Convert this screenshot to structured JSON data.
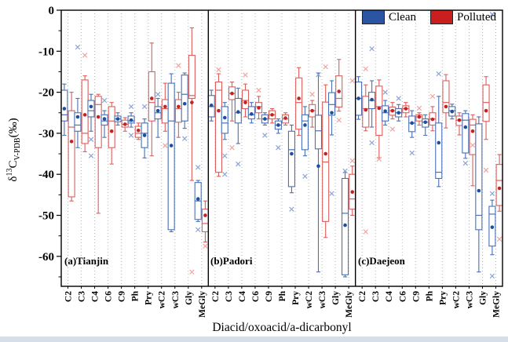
{
  "chart_data": {
    "type": "boxplot",
    "title": "",
    "xlabel": "Diacid/oxoacid/a-dicarbonyl",
    "ylabel_parts": {
      "delta": "δ",
      "sup": "13",
      "main": "C",
      "sub": "V-PDB",
      "unit": "(‰)"
    },
    "y_axis": {
      "ticks": [
        0,
        -10,
        -20,
        -30,
        -40,
        -50,
        -60
      ],
      "minor_ticks": [
        -5,
        -15,
        -25,
        -35,
        -45,
        -55,
        -65
      ],
      "min": -67.3,
      "max": 0,
      "grid": "vertical-dotted"
    },
    "categories": [
      "C2",
      "C3",
      "C4",
      "C6",
      "C9",
      "Ph",
      "Pry",
      "wC2",
      "wC3",
      "Gly",
      "MeGly"
    ],
    "legend": [
      {
        "label": "Clean",
        "color": "#2b55a2"
      },
      {
        "label": "Polluted",
        "color": "#cb1f1f"
      }
    ],
    "series_style": {
      "clean": {
        "stroke": "#4a70b5",
        "mean": "#1e4f9f",
        "outlier": "#8aa4d6"
      },
      "polluted": {
        "stroke": "#db5f5c",
        "mean": "#c42323",
        "outlier": "#efa4a0"
      }
    },
    "box_value_order": [
      "low",
      "q1",
      "median",
      "q3",
      "high",
      "mean"
    ],
    "panels": [
      {
        "label": "(a)Tianjin",
        "boxes": [
          {
            "cat": "C2",
            "clean": [
              -30.5,
              -27,
              -25.5,
              -19.5,
              -18,
              -24
            ],
            "clean_out": [],
            "poll": [
              -46.5,
              -45.5,
              -28.5,
              -24.5,
              -20,
              -32
            ],
            "poll_out": []
          },
          {
            "cat": "C3",
            "clean": [
              -33.5,
              -29.5,
              -28,
              -25,
              -21.5,
              -26
            ],
            "clean_out": [
              -9
            ],
            "poll": [
              -34.5,
              -32.5,
              -30,
              -17,
              -16,
              -25.5
            ],
            "poll_out": [
              -11
            ]
          },
          {
            "cat": "C4",
            "clean": [
              -29.5,
              -26,
              -24.5,
              -22,
              -20.5,
              -23.5
            ],
            "clean_out": [
              -31.5,
              -35.5
            ],
            "poll": [
              -49.5,
              -33.5,
              -23,
              -21,
              -20.5,
              -26
            ],
            "poll_out": []
          },
          {
            "cat": "C6",
            "clean": [
              -31,
              -28,
              -27,
              -25.5,
              -24.5,
              -26.5
            ],
            "clean_out": [
              -22
            ],
            "poll": [
              -37.5,
              -33.5,
              -27,
              -23.5,
              -22.5,
              -29.5
            ],
            "poll_out": []
          },
          {
            "cat": "C9",
            "clean": [
              -28,
              -27.2,
              -26.5,
              -25.8,
              -25,
              -26.5
            ],
            "clean_out": [],
            "poll": [
              -29.5,
              -28.5,
              -27.8,
              -26.8,
              -26.2,
              -27.8
            ],
            "poll_out": []
          },
          {
            "cat": "Ph",
            "clean": [
              -28.5,
              -27.5,
              -27,
              -25.8,
              -25,
              -26.8
            ],
            "clean_out": [
              -23.5,
              -30.5
            ],
            "poll": [
              -31.5,
              -31,
              -30,
              -28.3,
              -27.5,
              -29.3
            ],
            "poll_out": []
          },
          {
            "cat": "Pry",
            "clean": [
              -36,
              -33.5,
              -30,
              -27.5,
              -26.5,
              -30.5
            ],
            "clean_out": [
              -23.5
            ],
            "poll": [
              -35.5,
              -27,
              -22.5,
              -15,
              -8,
              -21.5
            ],
            "poll_out": []
          },
          {
            "cat": "wC2",
            "clean": [
              -31,
              -26.5,
              -25,
              -23.5,
              -21.5,
              -24.5
            ],
            "clean_out": [
              -20.5
            ],
            "poll": [
              -29.5,
              -27.5,
              -24,
              -21.8,
              -17.8,
              -23.5
            ],
            "poll_out": [
              -33
            ]
          },
          {
            "cat": "wC3",
            "clean": [
              -54,
              -53.5,
              -27,
              -17.8,
              -15.5,
              -33
            ],
            "clean_out": [],
            "poll": [
              -31,
              -27.3,
              -24,
              -21.8,
              -20,
              -23.5
            ],
            "poll_out": [
              -13.5
            ]
          },
          {
            "cat": "Gly",
            "clean": [
              -28.8,
              -27,
              -20.5,
              -15.8,
              -15.3,
              -22.8
            ],
            "clean_out": [
              -31.3
            ],
            "poll": [
              -41.5,
              -21.5,
              -20.8,
              -11,
              -4.3,
              -22.5
            ],
            "poll_out": [
              -63.8
            ]
          },
          {
            "cat": "MeGly",
            "clean": [
              -51.5,
              -51,
              -46.5,
              -42,
              -41.5,
              -46
            ],
            "clean_out": [
              -38.3,
              -53.5
            ],
            "poll": [
              -56.5,
              -54,
              -52,
              -48.5,
              -46.5,
              -50
            ],
            "poll_out": [
              -57.5
            ]
          }
        ]
      },
      {
        "label": "(b)Padori",
        "boxes": [
          {
            "cat": "C2",
            "clean": [
              -27,
              -26,
              -23.5,
              -20.8,
              -19.5,
              -23.2
            ],
            "clean_out": [],
            "poll": [
              -40.5,
              -39.5,
              -19.5,
              -17.5,
              -15.5,
              -24.5
            ],
            "poll_out": [
              -14.5
            ]
          },
          {
            "cat": "C3",
            "clean": [
              -31.5,
              -30,
              -27.5,
              -23.5,
              -22.5,
              -26.2
            ],
            "clean_out": [
              -35.5,
              -40
            ],
            "poll": [
              -27,
              -21.8,
              -20.3,
              -18.7,
              -17.5,
              -20.3
            ],
            "poll_out": [
              -33.5
            ]
          },
          {
            "cat": "C4",
            "clean": [
              -32.5,
              -27.5,
              -25,
              -21.5,
              -19,
              -24.8
            ],
            "clean_out": [
              -37.5
            ],
            "poll": [
              -26,
              -24,
              -22,
              -19.5,
              -18,
              -22.5
            ],
            "poll_out": [
              -15.8
            ]
          },
          {
            "cat": "C6",
            "clean": [
              -27.5,
              -26.5,
              -25.5,
              -23.5,
              -22.5,
              -25.3
            ],
            "clean_out": [],
            "poll": [
              -26.5,
              -25,
              -23.5,
              -22.5,
              -21,
              -23.8
            ],
            "poll_out": [
              -19.5
            ]
          },
          {
            "cat": "C9",
            "clean": [
              -28,
              -27.5,
              -26.5,
              -25.5,
              -25,
              -26.5
            ],
            "clean_out": [
              -30.5
            ],
            "poll": [
              -27.5,
              -26.5,
              -25.5,
              -24.5,
              -24,
              -25.5
            ],
            "poll_out": []
          },
          {
            "cat": "Ph",
            "clean": [
              -30,
              -29,
              -28,
              -27,
              -26.5,
              -28
            ],
            "clean_out": [
              -33.5
            ],
            "poll": [
              -28,
              -27.5,
              -26.5,
              -25.5,
              -25,
              -26.3
            ],
            "poll_out": []
          },
          {
            "cat": "Pry",
            "clean": [
              -44.5,
              -43,
              -34,
              -29.5,
              -28,
              -35
            ],
            "clean_out": [
              -48.5
            ],
            "poll": [
              -30.5,
              -29,
              -22.5,
              -16.5,
              -14,
              -21.5
            ],
            "poll_out": []
          },
          {
            "cat": "wC2",
            "clean": [
              -35.5,
              -34,
              -27,
              -25.5,
              -23.5,
              -28
            ],
            "clean_out": [
              -40.5
            ],
            "poll": [
              -28.5,
              -26,
              -24.5,
              -23,
              -22,
              -24.5
            ],
            "poll_out": [
              -20.5
            ]
          },
          {
            "cat": "wC3",
            "clean": [
              -63.8,
              -33.8,
              -29.4,
              -25.6,
              -15.3,
              -38
            ],
            "clean_out": [
              -15.7
            ],
            "poll": [
              -55.4,
              -51.5,
              -37,
              -22.4,
              -18.2,
              -35
            ],
            "poll_out": [
              -13.8
            ]
          },
          {
            "cat": "Gly",
            "clean": [
              -30.4,
              -25.6,
              -23,
              -20.1,
              -17.2,
              -25
            ],
            "clean_out": [
              -44.7
            ],
            "poll": [
              -24.6,
              -23.6,
              -21.5,
              -16,
              -12,
              -19.8
            ],
            "poll_out": [
              -26.8
            ]
          },
          {
            "cat": "MeGly",
            "clean": [
              -65,
              -64.5,
              -49.5,
              -41,
              -39.5,
              -52.4
            ],
            "clean_out": [
              -39.2
            ],
            "poll": [
              -50,
              -48.5,
              -46,
              -40,
              -38,
              -44.3
            ],
            "poll_out": [
              -17.2,
              -36.7
            ]
          }
        ]
      },
      {
        "label": "(c)Daejeon",
        "boxes": [
          {
            "cat": "C2",
            "clean": [
              -26.6,
              -25.6,
              -21.5,
              -17.5,
              -16.2,
              -21.5
            ],
            "clean_out": [],
            "poll": [
              -29.4,
              -28.5,
              -24,
              -21,
              -18.2,
              -24.3
            ],
            "poll_out": [
              -14.3,
              -54
            ]
          },
          {
            "cat": "C3",
            "clean": [
              -28.5,
              -24,
              -22,
              -20,
              -17.2,
              -21.8
            ],
            "clean_out": [
              -9.4,
              -32.3
            ],
            "poll": [
              -36,
              -30.5,
              -23.5,
              -18.5,
              -17,
              -23.9
            ],
            "poll_out": [
              -36.3
            ]
          },
          {
            "cat": "C4",
            "clean": [
              -28,
              -27,
              -25,
              -23.3,
              -22,
              -24.6
            ],
            "clean_out": [
              -20
            ],
            "poll": [
              -26.5,
              -25.6,
              -24.5,
              -23.6,
              -22.5,
              -24.5
            ],
            "poll_out": [
              -29
            ]
          },
          {
            "cat": "C6",
            "clean": [
              -27,
              -26,
              -25,
              -24,
              -23,
              -25
            ],
            "clean_out": [
              -21.5
            ],
            "poll": [
              -26,
              -25,
              -24,
              -23.3,
              -22.5,
              -24
            ],
            "poll_out": []
          },
          {
            "cat": "C9",
            "clean": [
              -31,
              -29.6,
              -27.5,
              -25.8,
              -24.5,
              -27.5
            ],
            "clean_out": [
              -34.8
            ],
            "poll": [
              -28,
              -27,
              -26,
              -25.5,
              -25,
              -26
            ],
            "poll_out": [
              -23.9
            ]
          },
          {
            "cat": "Ph",
            "clean": [
              -30.5,
              -28.5,
              -27.3,
              -26.5,
              -25.5,
              -27.3
            ],
            "clean_out": [],
            "poll": [
              -29.4,
              -28,
              -26.5,
              -25,
              -23.5,
              -26.6
            ],
            "poll_out": [
              -21
            ]
          },
          {
            "cat": "Pry",
            "clean": [
              -43,
              -41,
              -39.5,
              -27.5,
              -21,
              -32.3
            ],
            "clean_out": [
              -15.5
            ],
            "poll": [
              -28.7,
              -25,
              -22.5,
              -17.2,
              -15.7,
              -23.5
            ],
            "poll_out": []
          },
          {
            "cat": "wC2",
            "clean": [
              -26.5,
              -25.8,
              -24.5,
              -23.5,
              -22.9,
              -24.7
            ],
            "clean_out": [],
            "poll": [
              -30.4,
              -28.1,
              -26.8,
              -25.8,
              -25,
              -26.8
            ],
            "poll_out": []
          },
          {
            "cat": "wC3",
            "clean": [
              -36.1,
              -34.8,
              -26.8,
              -25.2,
              -24.5,
              -28.5
            ],
            "clean_out": [
              -37.3
            ],
            "poll": [
              -42.8,
              -35.2,
              -28,
              -26.6,
              -25.5,
              -29.5
            ],
            "poll_out": [
              -32.9
            ]
          },
          {
            "cat": "Gly",
            "clean": [
              -63.8,
              -53.5,
              -50,
              -27.7,
              -26,
              -44
            ],
            "clean_out": [],
            "poll": [
              -31.5,
              -27.1,
              -22.5,
              -18.2,
              -16.2,
              -24.5
            ],
            "poll_out": [
              -39
            ]
          },
          {
            "cat": "MeGly",
            "clean": [
              -59.6,
              -57.5,
              -49.7,
              -47.8,
              -46.3,
              -52.9
            ],
            "clean_out": [
              -44.7,
              -64.8,
              -1
            ],
            "poll": [
              -49,
              -47.6,
              -41.5,
              -37.6,
              -35.2,
              -43.4
            ],
            "poll_out": [
              -55.8
            ]
          }
        ]
      }
    ]
  }
}
